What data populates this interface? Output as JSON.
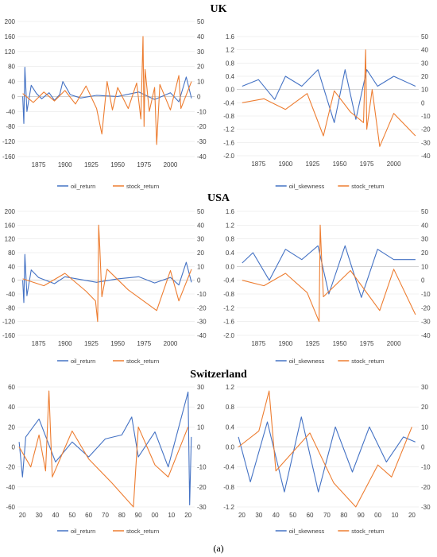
{
  "titles": {
    "uk": "UK",
    "usa": "USA",
    "switzerland": "Switzerland"
  },
  "caption": "(a)",
  "colors": {
    "oil": "#4472c4",
    "stock": "#ed7d31",
    "grid": "#e6e6e6",
    "tick": "#404040"
  },
  "chart_data": [
    {
      "id": "uk-return",
      "type": "line",
      "country": "UK",
      "x_ticks": [
        "1875",
        "1900",
        "1925",
        "1950",
        "1975",
        "2000"
      ],
      "x_range": [
        1855,
        2023
      ],
      "y_left_ticks": [
        200,
        160,
        120,
        80,
        40,
        0,
        -40,
        -80,
        -120,
        -160
      ],
      "y_left_lim": [
        -160,
        200
      ],
      "y_right_ticks": [
        50,
        40,
        30,
        20,
        10,
        0,
        -10,
        -20,
        -30,
        -40
      ],
      "y_right_lim": [
        -40,
        50
      ],
      "series": [
        {
          "name": "oil_return",
          "axis": "left",
          "color": "#4472c4",
          "x": [
            1860,
            1861,
            1862,
            1864,
            1868,
            1873,
            1878,
            1885,
            1890,
            1895,
            1898,
            1905,
            1915,
            1930,
            1950,
            1970,
            1985,
            2000,
            2008,
            2015,
            2020
          ],
          "y": [
            0,
            -72,
            78,
            -40,
            30,
            8,
            -6,
            10,
            -10,
            5,
            40,
            5,
            -4,
            3,
            0,
            12,
            -8,
            10,
            -14,
            52,
            -5
          ]
        },
        {
          "name": "stock_return",
          "axis": "right",
          "color": "#ed7d31",
          "x": [
            1860,
            1870,
            1880,
            1890,
            1900,
            1910,
            1920,
            1930,
            1935,
            1940,
            1945,
            1950,
            1960,
            1968,
            1972,
            1974,
            1975,
            1976,
            1980,
            1985,
            1987,
            1990,
            2000,
            2008,
            2010,
            2020
          ],
          "y": [
            2,
            -4,
            3,
            -3,
            4,
            -5,
            7,
            -8,
            -25,
            10,
            -9,
            6,
            -8,
            9,
            -15,
            40,
            -20,
            18,
            -10,
            6,
            -32,
            8,
            -9,
            14,
            -8,
            10
          ]
        }
      ]
    },
    {
      "id": "uk-skewness",
      "type": "line",
      "country": "UK",
      "x_ticks": [
        "1875",
        "1900",
        "1925",
        "1950",
        "1975",
        "2000"
      ],
      "x_range": [
        1855,
        2023
      ],
      "y_left_ticks": [
        1.6,
        1.2,
        0.8,
        0.4,
        0.0,
        -0.4,
        -0.8,
        -1.2,
        -1.6,
        -2.0
      ],
      "y_left_lim": [
        -2.0,
        1.6
      ],
      "y_right_ticks": [
        50,
        40,
        30,
        20,
        10,
        0,
        -10,
        -20,
        -30,
        -40
      ],
      "y_right_lim": [
        -40,
        50
      ],
      "series": [
        {
          "name": "oil_skewness",
          "axis": "left",
          "color": "#4472c4",
          "x": [
            1860,
            1875,
            1890,
            1900,
            1915,
            1930,
            1945,
            1955,
            1965,
            1975,
            1985,
            2000,
            2020
          ],
          "y": [
            0.1,
            0.3,
            -0.3,
            0.4,
            0.1,
            0.6,
            -1.0,
            0.6,
            -0.9,
            0.6,
            0.1,
            0.4,
            0.1
          ]
        },
        {
          "name": "stock_return",
          "axis": "right",
          "color": "#ed7d31",
          "x": [
            1860,
            1880,
            1900,
            1920,
            1935,
            1945,
            1960,
            1972,
            1974,
            1975,
            1980,
            1987,
            2000,
            2020
          ],
          "y": [
            0,
            3,
            -5,
            7,
            -25,
            9,
            -7,
            -15,
            40,
            -20,
            10,
            -33,
            -8,
            -25
          ]
        }
      ]
    },
    {
      "id": "usa-return",
      "type": "line",
      "country": "USA",
      "x_ticks": [
        "1875",
        "1900",
        "1925",
        "1950",
        "1975",
        "2000"
      ],
      "x_range": [
        1855,
        2023
      ],
      "y_left_ticks": [
        200,
        160,
        120,
        80,
        40,
        0,
        -40,
        -80,
        -120,
        -160
      ],
      "y_left_lim": [
        -160,
        200
      ],
      "y_right_ticks": [
        50,
        40,
        30,
        20,
        10,
        0,
        -10,
        -20,
        -30,
        -40
      ],
      "y_right_lim": [
        -40,
        50
      ],
      "series": [
        {
          "name": "oil_return",
          "axis": "left",
          "color": "#4472c4",
          "x": [
            1860,
            1861,
            1862,
            1864,
            1868,
            1875,
            1890,
            1900,
            1930,
            1950,
            1970,
            1985,
            2000,
            2008,
            2015,
            2020
          ],
          "y": [
            0,
            -65,
            75,
            -45,
            30,
            8,
            -10,
            10,
            -6,
            4,
            10,
            -8,
            8,
            -14,
            52,
            -6
          ]
        },
        {
          "name": "stock_return",
          "axis": "right",
          "color": "#ed7d31",
          "x": [
            1860,
            1880,
            1900,
            1920,
            1929,
            1931,
            1932,
            1933,
            1935,
            1940,
            1960,
            1987,
            2000,
            2008,
            2020
          ],
          "y": [
            1,
            -4,
            5,
            -8,
            -15,
            -30,
            40,
            25,
            -12,
            8,
            -7,
            -22,
            7,
            -15,
            8
          ]
        }
      ]
    },
    {
      "id": "usa-skewness",
      "type": "line",
      "country": "USA",
      "x_ticks": [
        "1875",
        "1900",
        "1925",
        "1950",
        "1975",
        "2000"
      ],
      "x_range": [
        1855,
        2023
      ],
      "y_left_ticks": [
        1.6,
        1.2,
        0.8,
        0.4,
        0.0,
        -0.4,
        -0.8,
        -1.2,
        -1.6,
        -2.0
      ],
      "y_left_lim": [
        -2.0,
        1.6
      ],
      "y_right_ticks": [
        50,
        40,
        30,
        20,
        10,
        0,
        -10,
        -20,
        -30,
        -40
      ],
      "y_right_lim": [
        -40,
        50
      ],
      "series": [
        {
          "name": "oil_skewness",
          "axis": "left",
          "color": "#4472c4",
          "x": [
            1860,
            1870,
            1885,
            1900,
            1915,
            1930,
            1940,
            1955,
            1970,
            1985,
            2000,
            2020
          ],
          "y": [
            0.1,
            0.4,
            -0.4,
            0.5,
            0.2,
            0.6,
            -0.8,
            0.6,
            -0.9,
            0.5,
            0.2,
            0.2
          ]
        },
        {
          "name": "stock_return",
          "axis": "right",
          "color": "#ed7d31",
          "x": [
            1860,
            1880,
            1900,
            1920,
            1931,
            1932,
            1933,
            1935,
            1960,
            1987,
            2000,
            2020
          ],
          "y": [
            0,
            -4,
            5,
            -9,
            -30,
            40,
            22,
            -12,
            7,
            -22,
            8,
            -25
          ]
        }
      ]
    },
    {
      "id": "switzerland-return",
      "type": "line",
      "country": "Switzerland",
      "x_ticks": [
        "20",
        "30",
        "40",
        "50",
        "60",
        "70",
        "80",
        "90",
        "00",
        "10",
        "20"
      ],
      "x_range": [
        1917,
        2024
      ],
      "y_left_ticks": [
        60,
        40,
        20,
        0,
        -20,
        -40,
        -60
      ],
      "y_left_lim": [
        -60,
        60
      ],
      "y_right_ticks": [
        30,
        20,
        10,
        0,
        -10,
        -20,
        -30
      ],
      "y_right_lim": [
        -30,
        30
      ],
      "series": [
        {
          "name": "oil_return",
          "axis": "left",
          "color": "#4472c4",
          "x": [
            1918,
            1920,
            1922,
            1930,
            1940,
            1950,
            1960,
            1970,
            1980,
            1986,
            1990,
            2000,
            2008,
            2020,
            2021,
            2022
          ],
          "y": [
            5,
            -30,
            10,
            28,
            -15,
            5,
            -10,
            8,
            12,
            30,
            -10,
            15,
            -20,
            55,
            -58,
            10
          ]
        },
        {
          "name": "stock_return",
          "axis": "right",
          "color": "#ed7d31",
          "x": [
            1918,
            1925,
            1930,
            1934,
            1936,
            1938,
            1950,
            1960,
            1974,
            1987,
            1990,
            2000,
            2008,
            2020
          ],
          "y": [
            0,
            -10,
            6,
            -12,
            28,
            -15,
            8,
            -6,
            -18,
            -30,
            10,
            -9,
            -15,
            10
          ]
        }
      ]
    },
    {
      "id": "switzerland-skewness",
      "type": "line",
      "country": "Switzerland",
      "x_ticks": [
        "20",
        "30",
        "40",
        "50",
        "60",
        "70",
        "80",
        "90",
        "00",
        "10",
        "20"
      ],
      "x_range": [
        1917,
        2024
      ],
      "y_left_ticks": [
        1.2,
        0.8,
        0.4,
        0.0,
        -0.4,
        -0.8,
        -1.2
      ],
      "y_left_lim": [
        -1.2,
        1.2
      ],
      "y_right_ticks": [
        30,
        20,
        10,
        0,
        -10,
        -20,
        -30
      ],
      "y_right_lim": [
        -30,
        30
      ],
      "series": [
        {
          "name": "oil_skewness",
          "axis": "left",
          "color": "#4472c4",
          "x": [
            1918,
            1925,
            1935,
            1945,
            1955,
            1965,
            1975,
            1985,
            1995,
            2005,
            2015,
            2022
          ],
          "y": [
            0.2,
            -0.7,
            0.5,
            -0.9,
            0.6,
            -0.9,
            0.4,
            -0.5,
            0.4,
            -0.3,
            0.2,
            0.1
          ]
        },
        {
          "name": "stock_return",
          "axis": "right",
          "color": "#ed7d31",
          "x": [
            1918,
            1930,
            1936,
            1940,
            1960,
            1974,
            1987,
            2000,
            2008,
            2020
          ],
          "y": [
            0,
            8,
            28,
            -12,
            7,
            -18,
            -30,
            -9,
            -15,
            10
          ]
        }
      ]
    }
  ]
}
